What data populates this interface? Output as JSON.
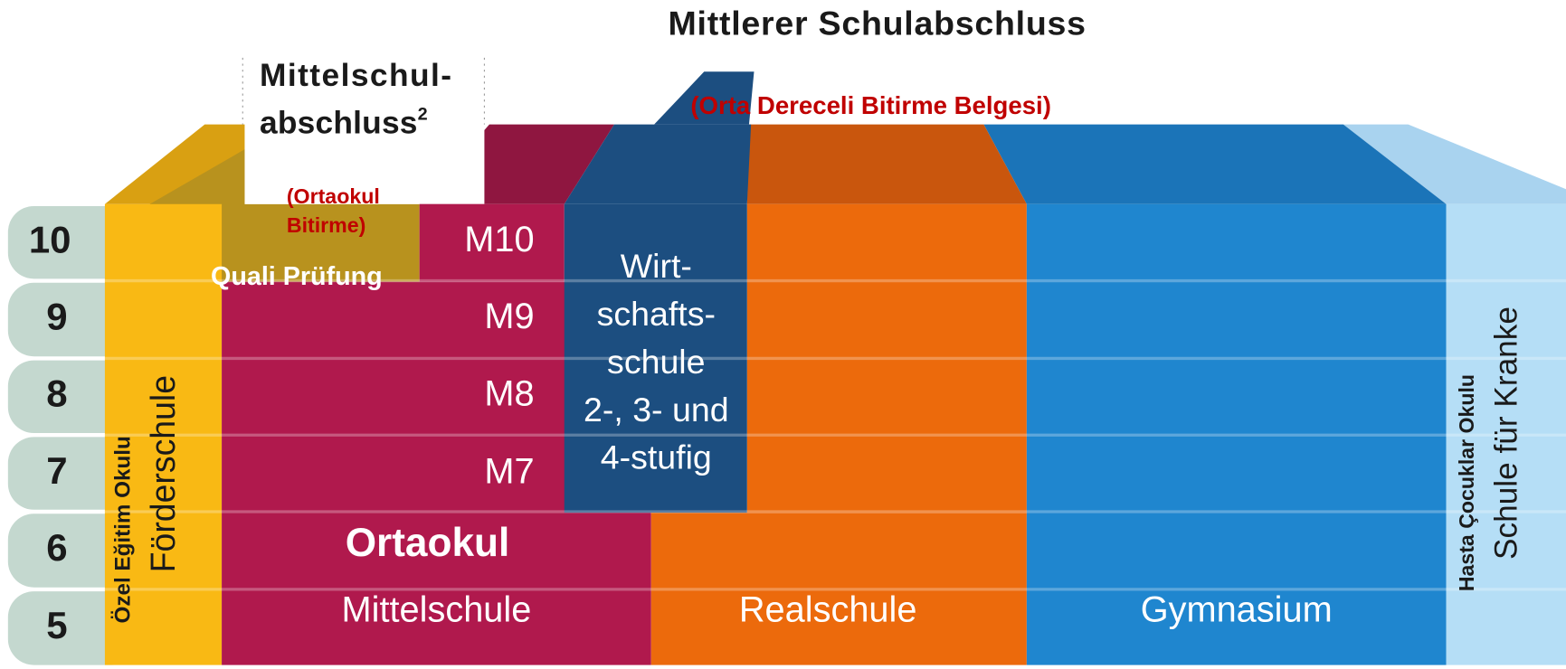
{
  "header": {
    "title": "Mittlerer Schulabschluss",
    "translation": "(Orta Dereceli Bitirme Belgesi)"
  },
  "mittelschulabschluss": {
    "line1": "Mittelschul-",
    "line2": "abschluss",
    "footnote": "2",
    "translation": [
      "(Ortaokul",
      "Bitirme)"
    ]
  },
  "quali": "Quali Prüfung",
  "grades": [
    "10",
    "9",
    "8",
    "7",
    "6",
    "5"
  ],
  "foerderschule": {
    "name": "Förderschule",
    "translation": "Özel Eğitim Okulu"
  },
  "mittelschule": {
    "name": "Mittelschule",
    "translation": "Ortaokul",
    "m_grades": [
      "M10",
      "M9",
      "M8",
      "M7"
    ]
  },
  "wirtschaftsschule": {
    "lines": [
      "Wirt-",
      "schafts-",
      "schule",
      "2-, 3- und",
      "4-stufig"
    ]
  },
  "realschule": "Realschule",
  "gymnasium": "Gymnasium",
  "kranke": {
    "name": "Schule für Kranke",
    "translation": "Hasta Çocuklar Okulu"
  }
}
